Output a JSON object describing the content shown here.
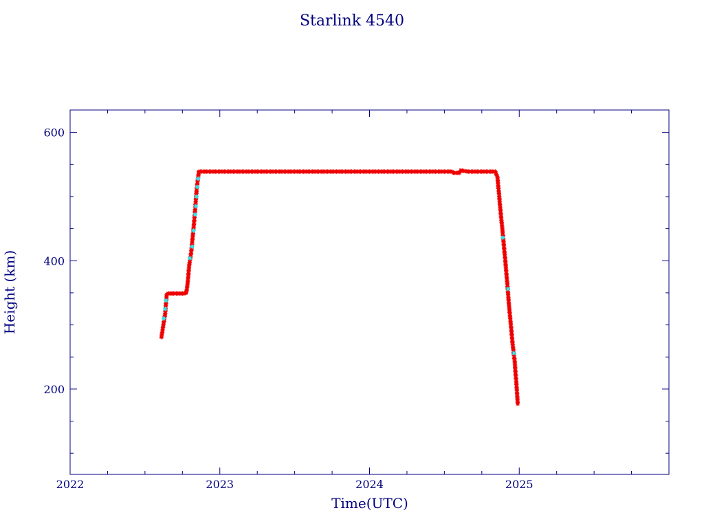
{
  "chart_data": {
    "type": "scatter",
    "title": "Starlink 4540",
    "xlabel": "Time(UTC)",
    "ylabel": "Height (km)",
    "xlim": [
      2022.0,
      2026.0
    ],
    "ylim": [
      67,
      635
    ],
    "x_ticks": [
      2022,
      2023,
      2024,
      2025
    ],
    "x_tick_labels": [
      "2022",
      "2023",
      "2024",
      "2025"
    ],
    "y_ticks": [
      200,
      400,
      600
    ],
    "y_tick_labels": [
      "200",
      "400",
      "600"
    ],
    "y_minor_step": 50,
    "x_minor_step": 0.25,
    "grid": false,
    "marker": "asterisk",
    "colors": {
      "axes": "#000080",
      "primary": "#ee0000",
      "secondary": "#33e5ee"
    },
    "series": [
      {
        "color": "#ee0000",
        "points": [
          [
            2022.61,
            281
          ],
          [
            2022.615,
            288
          ],
          [
            2022.62,
            296
          ],
          [
            2022.625,
            303
          ],
          [
            2022.635,
            318
          ],
          [
            2022.64,
            333
          ],
          [
            2022.645,
            347
          ],
          [
            2022.655,
            349
          ],
          [
            2022.68,
            349
          ],
          [
            2022.7,
            349
          ],
          [
            2022.72,
            349
          ],
          [
            2022.74,
            349
          ],
          [
            2022.76,
            349
          ],
          [
            2022.775,
            350
          ],
          [
            2022.78,
            356
          ],
          [
            2022.785,
            365
          ],
          [
            2022.79,
            378
          ],
          [
            2022.795,
            392
          ],
          [
            2022.8,
            400
          ],
          [
            2022.805,
            407
          ],
          [
            2022.81,
            416
          ],
          [
            2022.815,
            428
          ],
          [
            2022.82,
            440
          ],
          [
            2022.825,
            452
          ],
          [
            2022.83,
            465
          ],
          [
            2022.835,
            480
          ],
          [
            2022.84,
            495
          ],
          [
            2022.845,
            510
          ],
          [
            2022.85,
            521
          ],
          [
            2022.86,
            539
          ],
          [
            2022.9,
            539
          ],
          [
            2023.0,
            539
          ],
          [
            2023.1,
            539
          ],
          [
            2023.2,
            539
          ],
          [
            2023.3,
            539
          ],
          [
            2023.4,
            539
          ],
          [
            2023.5,
            539
          ],
          [
            2023.6,
            539
          ],
          [
            2023.7,
            539
          ],
          [
            2023.8,
            539
          ],
          [
            2023.9,
            539
          ],
          [
            2024.0,
            539
          ],
          [
            2024.1,
            539
          ],
          [
            2024.2,
            539
          ],
          [
            2024.3,
            539
          ],
          [
            2024.4,
            539
          ],
          [
            2024.5,
            539
          ],
          [
            2024.55,
            539
          ],
          [
            2024.56,
            537
          ],
          [
            2024.58,
            537
          ],
          [
            2024.6,
            537
          ],
          [
            2024.61,
            541
          ],
          [
            2024.63,
            540
          ],
          [
            2024.66,
            539
          ],
          [
            2024.7,
            539
          ],
          [
            2024.75,
            539
          ],
          [
            2024.8,
            539
          ],
          [
            2024.84,
            539
          ],
          [
            2024.855,
            530
          ],
          [
            2024.86,
            515
          ],
          [
            2024.865,
            505
          ],
          [
            2024.87,
            490
          ],
          [
            2024.875,
            478
          ],
          [
            2024.88,
            465
          ],
          [
            2024.885,
            455
          ],
          [
            2024.89,
            442
          ],
          [
            2024.895,
            430
          ],
          [
            2024.9,
            417
          ],
          [
            2024.905,
            405
          ],
          [
            2024.91,
            392
          ],
          [
            2024.915,
            378
          ],
          [
            2024.92,
            365
          ],
          [
            2024.925,
            350
          ],
          [
            2024.93,
            335
          ],
          [
            2024.935,
            322
          ],
          [
            2024.94,
            310
          ],
          [
            2024.945,
            298
          ],
          [
            2024.95,
            285
          ],
          [
            2024.955,
            272
          ],
          [
            2024.96,
            262
          ],
          [
            2024.965,
            252
          ],
          [
            2024.97,
            243
          ],
          [
            2024.975,
            225
          ],
          [
            2024.98,
            212
          ],
          [
            2024.985,
            195
          ],
          [
            2024.99,
            177
          ]
        ]
      },
      {
        "color": "#33e5ee",
        "points": [
          [
            2022.625,
            310
          ],
          [
            2022.635,
            325
          ],
          [
            2022.64,
            338
          ],
          [
            2022.8,
            404
          ],
          [
            2022.815,
            422
          ],
          [
            2022.825,
            447
          ],
          [
            2022.835,
            472
          ],
          [
            2022.84,
            485
          ],
          [
            2022.845,
            500
          ],
          [
            2022.85,
            515
          ],
          [
            2022.855,
            528
          ],
          [
            2024.89,
            436
          ],
          [
            2024.925,
            356
          ],
          [
            2024.965,
            256
          ]
        ]
      }
    ]
  }
}
